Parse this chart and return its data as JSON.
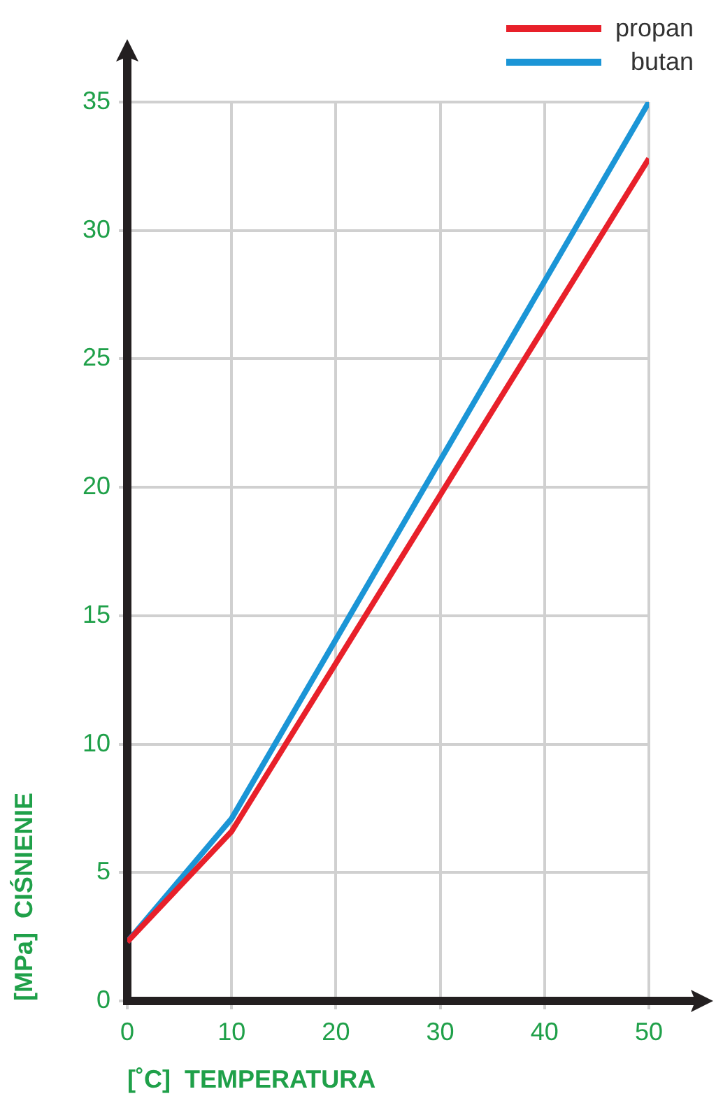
{
  "chart_data": {
    "type": "line",
    "xlabel": "[˚C]  TEMPERATURA",
    "ylabel": "[MPa]  CIŚNIENIE",
    "x": [
      0,
      10,
      50
    ],
    "series": [
      {
        "name": "propan",
        "color": "#e8202a",
        "values": [
          2.3,
          6.6,
          32.8
        ]
      },
      {
        "name": "butan",
        "color": "#1b95d6",
        "values": [
          2.3,
          7.1,
          35
        ]
      }
    ],
    "xlim": [
      0,
      50
    ],
    "xticks": [
      0,
      10,
      20,
      30,
      40,
      50
    ],
    "ylim": [
      0,
      35
    ],
    "yticks": [
      0,
      5,
      10,
      15,
      20,
      25,
      30,
      35
    ],
    "grid": true,
    "legend": "top right",
    "marker": "none",
    "line_style": "solid"
  }
}
